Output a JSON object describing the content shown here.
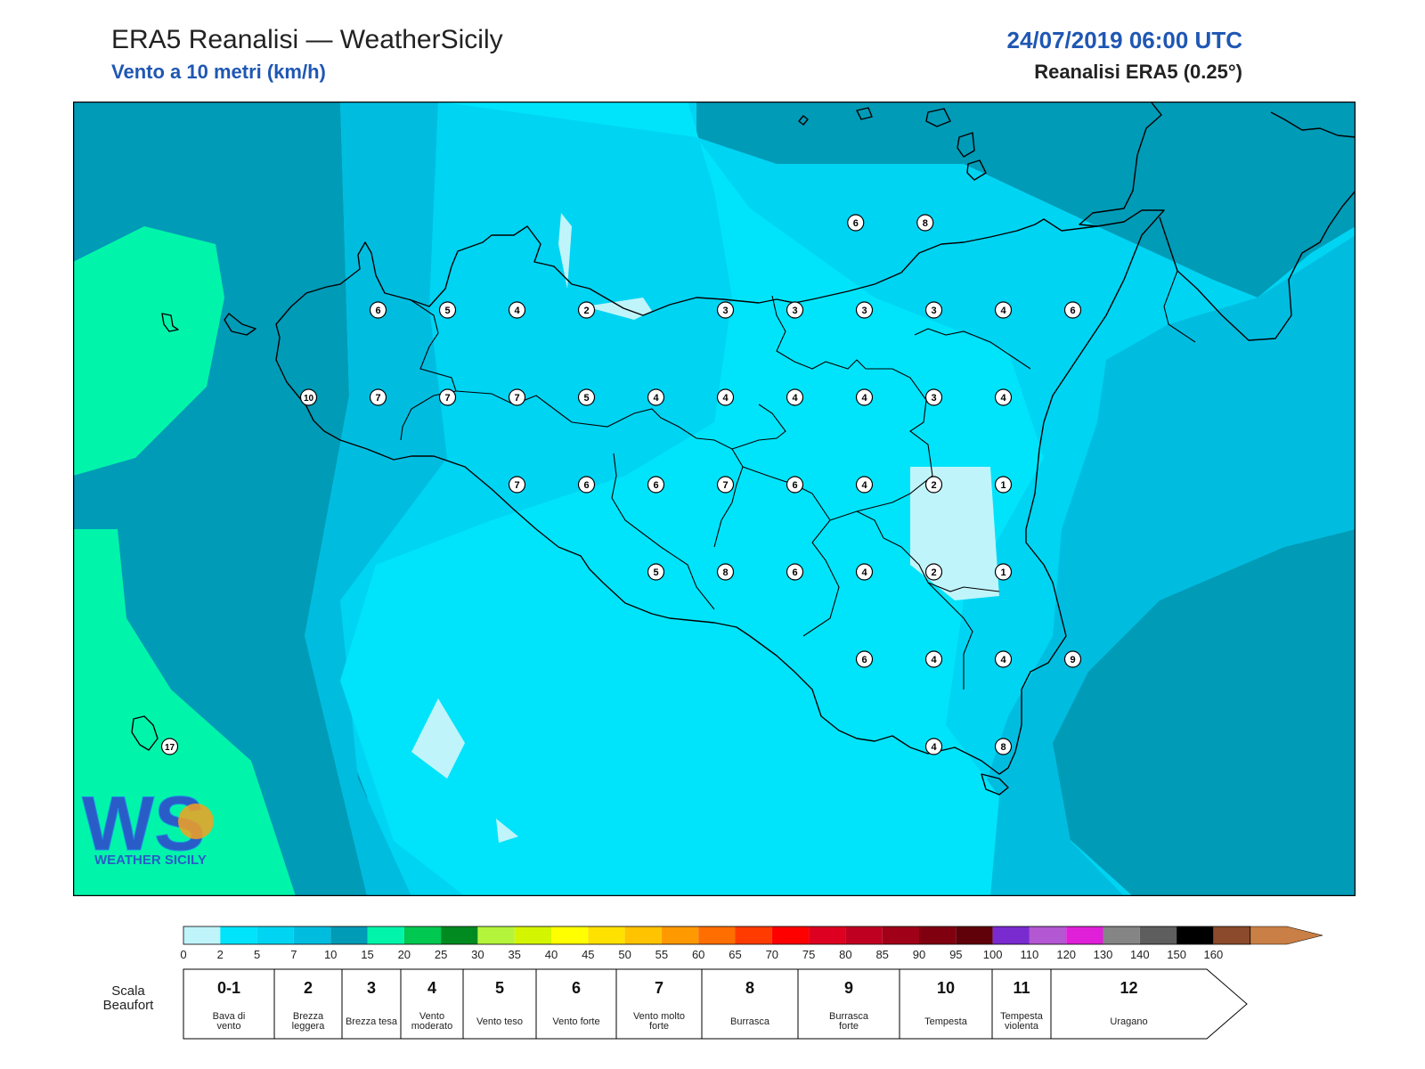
{
  "header": {
    "title": "ERA5 Reanalisi — WeatherSicily",
    "subtitle": "Vento a 10 metri (km/h)",
    "datetime": "24/07/2019 06:00 UTC",
    "source": "Reanalisi ERA5 (0.25°)"
  },
  "logo": {
    "text": "WS",
    "tagline": "WEATHER SICILY"
  },
  "colors": {
    "c0_2": "#c0f4fb",
    "c2_5": "#00e4fb",
    "c5_7": "#00d4f3",
    "c7_10": "#00bde0",
    "c10_15": "#009bb7",
    "c15_20": "#00f5aa",
    "land_line": "#000000"
  },
  "stations": [
    {
      "v": "6",
      "lon": 15.25,
      "lat": 38.25
    },
    {
      "v": "8",
      "lon": 15.65,
      "lat": 38.25
    },
    {
      "v": "6",
      "lon": 12.5,
      "lat": 38.0
    },
    {
      "v": "5",
      "lon": 12.9,
      "lat": 38.0
    },
    {
      "v": "4",
      "lon": 13.3,
      "lat": 38.0
    },
    {
      "v": "2",
      "lon": 13.7,
      "lat": 38.0
    },
    {
      "v": "3",
      "lon": 14.5,
      "lat": 38.0
    },
    {
      "v": "3",
      "lon": 14.9,
      "lat": 38.0
    },
    {
      "v": "3",
      "lon": 15.3,
      "lat": 38.0
    },
    {
      "v": "3",
      "lon": 15.7,
      "lat": 38.0
    },
    {
      "v": "4",
      "lon": 16.1,
      "lat": 38.0
    },
    {
      "v": "6",
      "lon": 16.5,
      "lat": 38.0
    },
    {
      "v": "10",
      "lon": 12.1,
      "lat": 37.75
    },
    {
      "v": "7",
      "lon": 12.5,
      "lat": 37.75
    },
    {
      "v": "7",
      "lon": 12.9,
      "lat": 37.75
    },
    {
      "v": "7",
      "lon": 13.3,
      "lat": 37.75
    },
    {
      "v": "5",
      "lon": 13.7,
      "lat": 37.75
    },
    {
      "v": "4",
      "lon": 14.1,
      "lat": 37.75
    },
    {
      "v": "4",
      "lon": 14.5,
      "lat": 37.75
    },
    {
      "v": "4",
      "lon": 14.9,
      "lat": 37.75
    },
    {
      "v": "4",
      "lon": 15.3,
      "lat": 37.75
    },
    {
      "v": "3",
      "lon": 15.7,
      "lat": 37.75
    },
    {
      "v": "4",
      "lon": 16.1,
      "lat": 37.75
    },
    {
      "v": "7",
      "lon": 13.3,
      "lat": 37.5
    },
    {
      "v": "6",
      "lon": 13.7,
      "lat": 37.5
    },
    {
      "v": "6",
      "lon": 14.1,
      "lat": 37.5
    },
    {
      "v": "7",
      "lon": 14.5,
      "lat": 37.5
    },
    {
      "v": "6",
      "lon": 14.9,
      "lat": 37.5
    },
    {
      "v": "4",
      "lon": 15.3,
      "lat": 37.5
    },
    {
      "v": "2",
      "lon": 15.7,
      "lat": 37.5
    },
    {
      "v": "1",
      "lon": 16.1,
      "lat": 37.5
    },
    {
      "v": "5",
      "lon": 14.1,
      "lat": 37.25
    },
    {
      "v": "8",
      "lon": 14.5,
      "lat": 37.25
    },
    {
      "v": "6",
      "lon": 14.9,
      "lat": 37.25
    },
    {
      "v": "4",
      "lon": 15.3,
      "lat": 37.25
    },
    {
      "v": "2",
      "lon": 15.7,
      "lat": 37.25
    },
    {
      "v": "1",
      "lon": 16.1,
      "lat": 37.25
    },
    {
      "v": "6",
      "lon": 15.3,
      "lat": 37.0
    },
    {
      "v": "4",
      "lon": 15.7,
      "lat": 37.0
    },
    {
      "v": "4",
      "lon": 16.1,
      "lat": 37.0
    },
    {
      "v": "9",
      "lon": 16.5,
      "lat": 37.0
    },
    {
      "v": "4",
      "lon": 15.7,
      "lat": 36.75
    },
    {
      "v": "8",
      "lon": 16.1,
      "lat": 36.75
    },
    {
      "v": "17",
      "lon": 11.3,
      "lat": 36.75
    }
  ],
  "colorbar": {
    "ticks": [
      "0",
      "2",
      "5",
      "7",
      "10",
      "15",
      "20",
      "25",
      "30",
      "35",
      "40",
      "45",
      "50",
      "55",
      "60",
      "65",
      "70",
      "75",
      "80",
      "85",
      "90",
      "95",
      "100",
      "110",
      "120",
      "130",
      "140",
      "150",
      "160"
    ],
    "colors": [
      "#c0f4fb",
      "#00e4fb",
      "#00d4f3",
      "#00bde0",
      "#009bb7",
      "#00f5aa",
      "#00c850",
      "#008a20",
      "#b4f53c",
      "#d4f500",
      "#ffff00",
      "#ffe100",
      "#ffc300",
      "#ff9900",
      "#ff6e00",
      "#ff3b00",
      "#ff0000",
      "#dd0020",
      "#c00020",
      "#a00018",
      "#800010",
      "#600008",
      "#7a2bd0",
      "#b357d3",
      "#e020d8",
      "#858585",
      "#5e5e5e",
      "#000000",
      "#8b4a2b",
      "#c97f45"
    ]
  },
  "beaufort": {
    "label": "Scala Beaufort",
    "levels": [
      {
        "n": "0-1",
        "desc": "Bava di vento"
      },
      {
        "n": "2",
        "desc": "Brezza leggera"
      },
      {
        "n": "3",
        "desc": "Brezza tesa"
      },
      {
        "n": "4",
        "desc": "Vento moderato"
      },
      {
        "n": "5",
        "desc": "Vento teso"
      },
      {
        "n": "6",
        "desc": "Vento forte"
      },
      {
        "n": "7",
        "desc": "Vento molto forte"
      },
      {
        "n": "8",
        "desc": "Burrasca"
      },
      {
        "n": "9",
        "desc": "Burrasca forte"
      },
      {
        "n": "10",
        "desc": "Tempesta"
      },
      {
        "n": "11",
        "desc": "Tempesta violenta"
      },
      {
        "n": "12",
        "desc": "Uragano"
      }
    ]
  }
}
